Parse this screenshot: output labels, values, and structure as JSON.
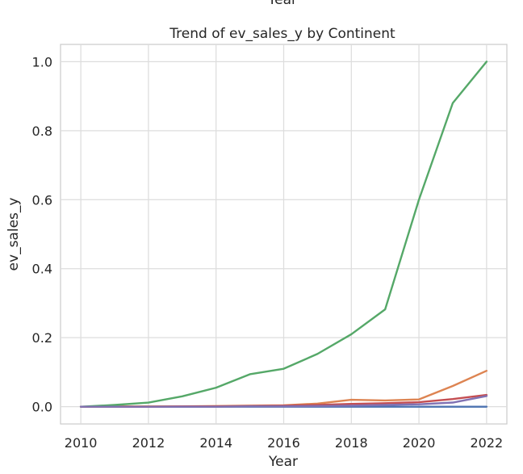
{
  "chart_data": {
    "type": "line",
    "title": "Trend of ev_sales_y by Continent",
    "top_clipped_label": "Year",
    "xlabel": "Year",
    "ylabel": "ev_sales_y",
    "x_ticks": [
      2010,
      2012,
      2014,
      2016,
      2018,
      2020,
      2022
    ],
    "y_ticks": [
      "0.0",
      "0.2",
      "0.4",
      "0.6",
      "0.8",
      "1.0"
    ],
    "xlim": [
      2009.4,
      2022.6
    ],
    "ylim": [
      -0.05,
      1.05
    ],
    "grid": true,
    "x": [
      2010,
      2011,
      2012,
      2013,
      2014,
      2015,
      2016,
      2017,
      2018,
      2019,
      2020,
      2021,
      2022
    ],
    "series": [
      {
        "color": "#4c72b0",
        "values": [
          0,
          0,
          0,
          0,
          0,
          0,
          0,
          0,
          0,
          0,
          0,
          0,
          0
        ]
      },
      {
        "color": "#dd8452",
        "values": [
          0,
          0.001,
          0.001,
          0.001,
          0.002,
          0.003,
          0.004,
          0.009,
          0.02,
          0.018,
          0.021,
          0.06,
          0.104
        ]
      },
      {
        "color": "#55a868",
        "values": [
          0,
          0.005,
          0.012,
          0.03,
          0.055,
          0.094,
          0.11,
          0.153,
          0.21,
          0.282,
          0.6,
          0.88,
          1.0
        ]
      },
      {
        "color": "#c44e52",
        "values": [
          0,
          0,
          0,
          0.001,
          0.001,
          0.002,
          0.003,
          0.005,
          0.008,
          0.01,
          0.013,
          0.022,
          0.034
        ]
      },
      {
        "color": "#8172b3",
        "values": [
          0,
          0,
          0,
          0,
          0,
          0.001,
          0.001,
          0.002,
          0.003,
          0.005,
          0.007,
          0.012,
          0.031
        ]
      }
    ]
  }
}
